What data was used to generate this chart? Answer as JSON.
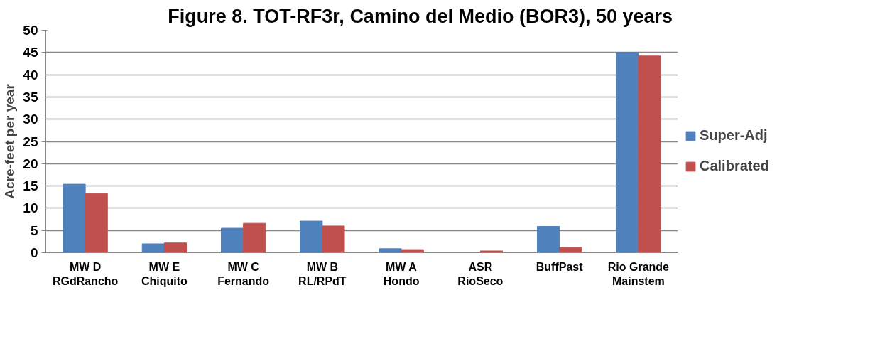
{
  "chart_data": {
    "type": "bar",
    "title": "Figure 8.  TOT-RF3r, Camino del Medio (BOR3), 50 years",
    "ylabel": "Acre-feet per year",
    "categories": [
      "MW D\nRGdRancho",
      "MW E\nChiquito",
      "MW C\nFernando",
      "MW B\nRL/RPdT",
      "MW A\nHondo",
      "ASR\nRioSeco",
      "BuffPast",
      "Rio Grande\nMainstem"
    ],
    "series": [
      {
        "name": "Super-Adj",
        "color": "#4f81bd",
        "values": [
          15.4,
          2.0,
          5.5,
          7.1,
          0.9,
          0,
          5.9,
          45.0
        ]
      },
      {
        "name": "Calibrated",
        "color": "#c0504d",
        "values": [
          13.3,
          2.2,
          6.6,
          6.0,
          0.7,
          0.4,
          1.1,
          44.2
        ]
      }
    ],
    "ylim": [
      0,
      50
    ],
    "yticks": [
      0,
      5,
      10,
      15,
      20,
      25,
      30,
      35,
      40,
      45,
      50
    ],
    "grid": "y",
    "legend": "right"
  }
}
